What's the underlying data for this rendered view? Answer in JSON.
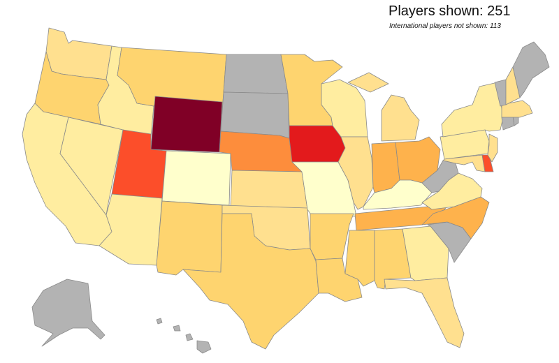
{
  "header": {
    "players_shown": "Players shown: 251",
    "international_note": "International players not shown: 113"
  },
  "colors": {
    "no_players": "#b3b3b3",
    "level_1": "#ffffcc",
    "level_2": "#ffeda0",
    "level_3": "#ffe08f",
    "level_4": "#fed46f",
    "level_5": "#feb24c",
    "level_6": "#fd8d3c",
    "level_7": "#fc4e2a",
    "level_8": "#e31a1c",
    "level_9": "#800026",
    "borders": "#8a8a8a"
  },
  "states": [
    {
      "name": "Washington",
      "fill": "level_3"
    },
    {
      "name": "Oregon",
      "fill": "level_4"
    },
    {
      "name": "California",
      "fill": "level_2"
    },
    {
      "name": "Nevada",
      "fill": "level_2"
    },
    {
      "name": "Idaho",
      "fill": "level_2"
    },
    {
      "name": "Montana",
      "fill": "level_4"
    },
    {
      "name": "Wyoming",
      "fill": "level_9"
    },
    {
      "name": "Utah",
      "fill": "level_7"
    },
    {
      "name": "Colorado",
      "fill": "level_1"
    },
    {
      "name": "Arizona",
      "fill": "level_2"
    },
    {
      "name": "New Mexico",
      "fill": "level_4"
    },
    {
      "name": "North Dakota",
      "fill": "no_players"
    },
    {
      "name": "South Dakota",
      "fill": "no_players"
    },
    {
      "name": "Nebraska",
      "fill": "level_6"
    },
    {
      "name": "Kansas",
      "fill": "level_3"
    },
    {
      "name": "Oklahoma",
      "fill": "level_3"
    },
    {
      "name": "Texas",
      "fill": "level_4"
    },
    {
      "name": "Minnesota",
      "fill": "level_4"
    },
    {
      "name": "Iowa",
      "fill": "level_8"
    },
    {
      "name": "Missouri",
      "fill": "level_1"
    },
    {
      "name": "Arkansas",
      "fill": "level_4"
    },
    {
      "name": "Louisiana",
      "fill": "level_4"
    },
    {
      "name": "Wisconsin",
      "fill": "level_2"
    },
    {
      "name": "Illinois",
      "fill": "level_3"
    },
    {
      "name": "Michigan",
      "fill": "level_3"
    },
    {
      "name": "Indiana",
      "fill": "level_5"
    },
    {
      "name": "Ohio",
      "fill": "level_5"
    },
    {
      "name": "Kentucky",
      "fill": "level_1"
    },
    {
      "name": "Tennessee",
      "fill": "level_5"
    },
    {
      "name": "Mississippi",
      "fill": "level_4"
    },
    {
      "name": "Alabama",
      "fill": "level_4"
    },
    {
      "name": "Georgia",
      "fill": "level_2"
    },
    {
      "name": "Florida",
      "fill": "level_3"
    },
    {
      "name": "South Carolina",
      "fill": "no_players"
    },
    {
      "name": "North Carolina",
      "fill": "level_5"
    },
    {
      "name": "Virginia",
      "fill": "level_2"
    },
    {
      "name": "West Virginia",
      "fill": "no_players"
    },
    {
      "name": "Pennsylvania",
      "fill": "level_2"
    },
    {
      "name": "New York",
      "fill": "level_2"
    },
    {
      "name": "Maryland",
      "fill": "level_3"
    },
    {
      "name": "Delaware",
      "fill": "level_7"
    },
    {
      "name": "New Jersey",
      "fill": "level_3"
    },
    {
      "name": "Connecticut",
      "fill": "no_players"
    },
    {
      "name": "Rhode Island",
      "fill": "no_players"
    },
    {
      "name": "Massachusetts",
      "fill": "level_3"
    },
    {
      "name": "Vermont",
      "fill": "no_players"
    },
    {
      "name": "New Hampshire",
      "fill": "level_3"
    },
    {
      "name": "Maine",
      "fill": "no_players"
    },
    {
      "name": "Alaska",
      "fill": "no_players"
    },
    {
      "name": "Hawaii",
      "fill": "no_players"
    }
  ]
}
